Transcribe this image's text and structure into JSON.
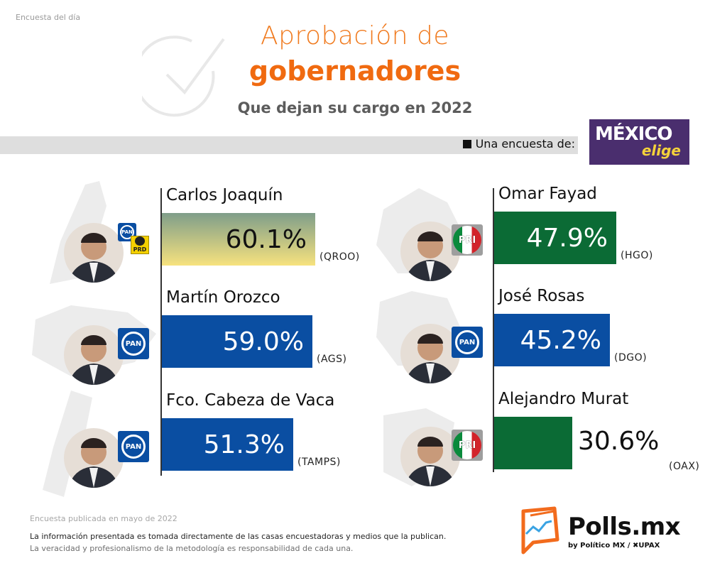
{
  "header": {
    "kicker": "Encuesta del día",
    "title_line1": "Aprobación de",
    "title_line2": "gobernadores",
    "subtitle": "Que dejan su cargo en 2022",
    "survey_by_label": "Una encuesta de:",
    "pollster_logo_text": "MÉXICO",
    "pollster_logo_sub": "elige"
  },
  "colors": {
    "accent_orange": "#f07a1e",
    "pan_blue": "#0a4ea2",
    "pri_green": "#0b6b35",
    "qroo_gradient_top": "#7f9e8a",
    "qroo_gradient_bottom": "#f7e27e",
    "pollster_purple": "#4a2e6e"
  },
  "chart_data": {
    "type": "bar",
    "title": "Aprobación de gobernadores",
    "subtitle": "Que dejan su cargo en 2022",
    "unit": "%",
    "orientation": "horizontal",
    "ylim": [
      0,
      100
    ],
    "columns": [
      {
        "position": "left",
        "items": [
          {
            "name": "Carlos Joaquín",
            "value": 60.1,
            "label": "60.1%",
            "state": "(QROO)",
            "parties": [
              "PAN",
              "PRD"
            ],
            "bar_style": "gradient"
          },
          {
            "name": "Martín Orozco",
            "value": 59.0,
            "label": "59.0%",
            "state": "(AGS)",
            "parties": [
              "PAN"
            ],
            "bar_style": "blue"
          },
          {
            "name": "Fco. Cabeza de Vaca",
            "value": 51.3,
            "label": "51.3%",
            "state": "(TAMPS)",
            "parties": [
              "PAN"
            ],
            "bar_style": "blue"
          }
        ]
      },
      {
        "position": "right",
        "items": [
          {
            "name": "Omar Fayad",
            "value": 47.9,
            "label": "47.9%",
            "state": "(HGO)",
            "parties": [
              "PRI"
            ],
            "bar_style": "green"
          },
          {
            "name": "José Rosas",
            "value": 45.2,
            "label": "45.2%",
            "state": "(DGO)",
            "parties": [
              "PAN"
            ],
            "bar_style": "blue"
          },
          {
            "name": "Alejandro Murat",
            "value": 30.6,
            "label": "30.6%",
            "state": "(OAX)",
            "parties": [
              "PRI"
            ],
            "bar_style": "green"
          }
        ]
      }
    ]
  },
  "party_labels": {
    "pan": "PAN",
    "pri": "PRI",
    "prd": "PRD"
  },
  "footer": {
    "published": "Encuesta publicada en mayo de 2022",
    "disclaimer_line1": "La información presentada es tomada directamente de las casas encuestadoras y medios que la publican.",
    "disclaimer_line2": "La veracidad y profesionalismo de la metodología es responsabilidad de cada una.",
    "brand_name": "Polls.mx",
    "brand_by": "by Político MX  /  ✖UPAX"
  }
}
